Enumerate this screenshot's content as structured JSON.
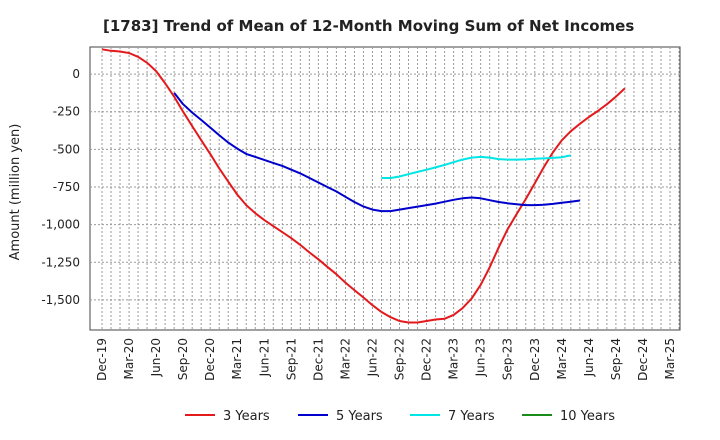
{
  "chart_data": {
    "type": "line",
    "title": "[1783]  Trend of Mean of 12-Month Moving Sum of Net Incomes",
    "ylabel": "Amount (million yen)",
    "xlabel": "",
    "ylim": [
      -1700,
      180
    ],
    "y_ticks": [
      0,
      -250,
      -500,
      -750,
      -1000,
      -1250,
      -1500
    ],
    "y_tick_labels": [
      "0",
      "-250",
      "-500",
      "-750",
      "-1,000",
      "-1,250",
      "-1,500"
    ],
    "categories": [
      "Dec-19",
      "Mar-20",
      "Jun-20",
      "Sep-20",
      "Dec-20",
      "Mar-21",
      "Jun-21",
      "Sep-21",
      "Dec-21",
      "Mar-22",
      "Jun-22",
      "Sep-22",
      "Dec-22",
      "Mar-23",
      "Jun-23",
      "Sep-23",
      "Dec-23",
      "Mar-24",
      "Jun-24",
      "Sep-24",
      "Dec-24",
      "Mar-25"
    ],
    "grid": true,
    "legend_position": "bottom",
    "series": [
      {
        "name": "3 Years",
        "color": "#e31a1c",
        "points": [
          [
            0,
            165
          ],
          [
            0.33,
            155
          ],
          [
            0.67,
            150
          ],
          [
            1,
            140
          ],
          [
            1.33,
            115
          ],
          [
            1.67,
            75
          ],
          [
            2,
            20
          ],
          [
            2.33,
            -60
          ],
          [
            2.67,
            -150
          ],
          [
            3,
            -250
          ],
          [
            3.33,
            -345
          ],
          [
            3.67,
            -440
          ],
          [
            4,
            -530
          ],
          [
            4.33,
            -625
          ],
          [
            4.67,
            -715
          ],
          [
            5,
            -800
          ],
          [
            5.33,
            -870
          ],
          [
            5.67,
            -925
          ],
          [
            6,
            -970
          ],
          [
            6.33,
            -1010
          ],
          [
            6.67,
            -1050
          ],
          [
            7,
            -1090
          ],
          [
            7.33,
            -1135
          ],
          [
            7.67,
            -1185
          ],
          [
            8,
            -1230
          ],
          [
            8.33,
            -1280
          ],
          [
            8.67,
            -1330
          ],
          [
            9,
            -1385
          ],
          [
            9.33,
            -1435
          ],
          [
            9.67,
            -1485
          ],
          [
            10,
            -1535
          ],
          [
            10.33,
            -1580
          ],
          [
            10.67,
            -1615
          ],
          [
            11,
            -1640
          ],
          [
            11.33,
            -1650
          ],
          [
            11.67,
            -1650
          ],
          [
            12,
            -1640
          ],
          [
            12.33,
            -1630
          ],
          [
            12.67,
            -1625
          ],
          [
            13,
            -1600
          ],
          [
            13.33,
            -1555
          ],
          [
            13.67,
            -1490
          ],
          [
            14,
            -1400
          ],
          [
            14.33,
            -1285
          ],
          [
            14.67,
            -1150
          ],
          [
            15,
            -1030
          ],
          [
            15.33,
            -930
          ],
          [
            15.67,
            -830
          ],
          [
            16,
            -725
          ],
          [
            16.33,
            -620
          ],
          [
            16.67,
            -520
          ],
          [
            17,
            -440
          ],
          [
            17.33,
            -380
          ],
          [
            17.67,
            -330
          ],
          [
            18,
            -285
          ],
          [
            18.33,
            -245
          ],
          [
            18.67,
            -200
          ],
          [
            19,
            -150
          ],
          [
            19.33,
            -95
          ]
        ]
      },
      {
        "name": "5 Years",
        "color": "#0000cc",
        "points": [
          [
            2.67,
            -125
          ],
          [
            3,
            -200
          ],
          [
            3.33,
            -255
          ],
          [
            3.67,
            -305
          ],
          [
            4,
            -355
          ],
          [
            4.33,
            -405
          ],
          [
            4.67,
            -455
          ],
          [
            5,
            -495
          ],
          [
            5.33,
            -530
          ],
          [
            5.67,
            -550
          ],
          [
            6,
            -570
          ],
          [
            6.33,
            -590
          ],
          [
            6.67,
            -610
          ],
          [
            7,
            -635
          ],
          [
            7.33,
            -660
          ],
          [
            7.67,
            -690
          ],
          [
            8,
            -720
          ],
          [
            8.33,
            -750
          ],
          [
            8.67,
            -780
          ],
          [
            9,
            -815
          ],
          [
            9.33,
            -850
          ],
          [
            9.67,
            -880
          ],
          [
            10,
            -900
          ],
          [
            10.33,
            -910
          ],
          [
            10.67,
            -910
          ],
          [
            11,
            -900
          ],
          [
            11.33,
            -890
          ],
          [
            11.67,
            -880
          ],
          [
            12,
            -870
          ],
          [
            12.33,
            -860
          ],
          [
            12.67,
            -848
          ],
          [
            13,
            -835
          ],
          [
            13.33,
            -825
          ],
          [
            13.67,
            -820
          ],
          [
            14,
            -825
          ],
          [
            14.33,
            -838
          ],
          [
            14.67,
            -850
          ],
          [
            15,
            -858
          ],
          [
            15.33,
            -865
          ],
          [
            15.67,
            -870
          ],
          [
            16,
            -870
          ],
          [
            16.33,
            -868
          ],
          [
            16.67,
            -862
          ],
          [
            17,
            -855
          ],
          [
            17.33,
            -848
          ],
          [
            17.67,
            -840
          ]
        ]
      },
      {
        "name": "7 Years",
        "color": "#00e5e5",
        "points": [
          [
            10.33,
            -690
          ],
          [
            10.67,
            -690
          ],
          [
            11,
            -680
          ],
          [
            11.33,
            -665
          ],
          [
            11.67,
            -650
          ],
          [
            12,
            -635
          ],
          [
            12.33,
            -620
          ],
          [
            12.67,
            -603
          ],
          [
            13,
            -585
          ],
          [
            13.33,
            -568
          ],
          [
            13.67,
            -555
          ],
          [
            14,
            -550
          ],
          [
            14.33,
            -555
          ],
          [
            14.67,
            -565
          ],
          [
            15,
            -568
          ],
          [
            15.33,
            -568
          ],
          [
            15.67,
            -567
          ],
          [
            16,
            -563
          ],
          [
            16.33,
            -560
          ],
          [
            16.67,
            -557
          ],
          [
            17,
            -552
          ],
          [
            17.33,
            -540
          ]
        ]
      },
      {
        "name": "10 Years",
        "color": "#1a8c1a",
        "points": []
      }
    ]
  }
}
